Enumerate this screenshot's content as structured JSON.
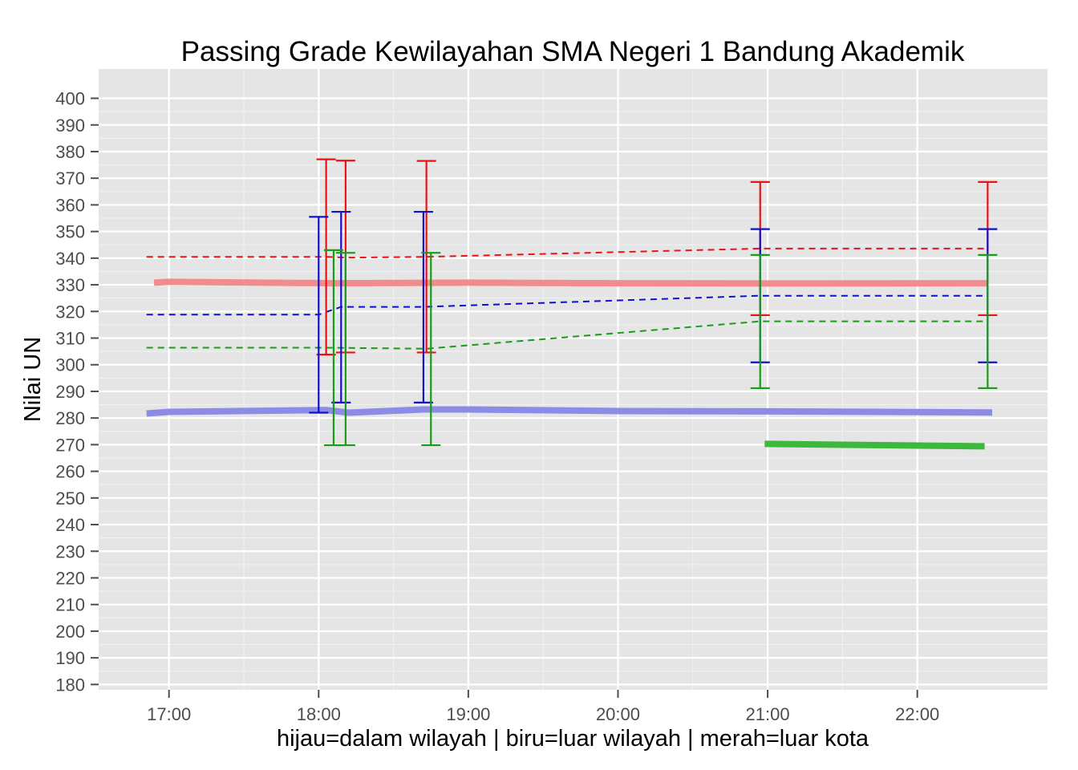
{
  "chart_data": {
    "type": "line",
    "title": "Passing Grade Kewilayahan SMA Negeri 1 Bandung Akademik",
    "xlabel": "hijau=dalam wilayah | biru=luar wilayah | merah=luar kota",
    "ylabel": "Nilai UN",
    "x_axis": {
      "kind": "time",
      "unit": "hours",
      "range": [
        16.53,
        22.87
      ],
      "ticks": [
        {
          "value": 17,
          "label": "17:00"
        },
        {
          "value": 18,
          "label": "18:00"
        },
        {
          "value": 19,
          "label": "19:00"
        },
        {
          "value": 20,
          "label": "20:00"
        },
        {
          "value": 21,
          "label": "21:00"
        },
        {
          "value": 22,
          "label": "22:00"
        }
      ]
    },
    "y_axis": {
      "range": [
        178,
        411
      ],
      "ticks": [
        180,
        190,
        200,
        210,
        220,
        230,
        240,
        250,
        260,
        270,
        280,
        290,
        300,
        310,
        320,
        330,
        340,
        350,
        360,
        370,
        380,
        390,
        400
      ]
    },
    "grid": true,
    "legend": "none",
    "colors": {
      "hijau": "#1a9c1a",
      "biru": "#1111cc",
      "merah": "#ee1111",
      "hijau_thick": "#3cb83c",
      "biru_thick": "#8c8ce6",
      "merah_thick": "#f28c8c",
      "panel": "#e5e5e5",
      "grid_major": "#ffffff",
      "grid_minor": "#f2f2f2"
    },
    "series": [
      {
        "color_key": "merah",
        "style": "dashed",
        "x": [
          16.85,
          18.05,
          18.18,
          18.72,
          20.95,
          22.47
        ],
        "y": [
          340.5,
          340.5,
          340.2,
          340.5,
          343.6,
          343.6
        ]
      },
      {
        "color_key": "biru",
        "style": "dashed",
        "x": [
          16.85,
          18.0,
          18.15,
          18.7,
          20.95,
          22.47
        ],
        "y": [
          318.8,
          318.8,
          321.7,
          321.7,
          325.9,
          325.9
        ]
      },
      {
        "color_key": "hijau",
        "style": "dashed",
        "x": [
          16.85,
          18.05,
          18.72,
          20.95,
          22.47
        ],
        "y": [
          306.4,
          306.4,
          306.0,
          316.3,
          316.3
        ]
      },
      {
        "color_key": "merah_thick",
        "style": "thick",
        "x": [
          16.9,
          17.0,
          18.1,
          19.0,
          20.0,
          21.0,
          22.47
        ],
        "y": [
          330.8,
          331.1,
          330.6,
          330.8,
          330.6,
          330.5,
          330.6
        ]
      },
      {
        "color_key": "biru_thick",
        "style": "thick",
        "x": [
          16.85,
          17.0,
          18.05,
          18.2,
          18.7,
          19.0,
          20.0,
          21.0,
          22.5
        ],
        "y": [
          281.7,
          282.3,
          283.0,
          282.0,
          283.2,
          283.2,
          282.6,
          282.5,
          282.1
        ]
      },
      {
        "color_key": "hijau_thick",
        "style": "thick",
        "x": [
          20.98,
          22.45
        ],
        "y": [
          270.3,
          269.4
        ]
      }
    ],
    "error_bars": [
      {
        "color_key": "merah",
        "x": 18.05,
        "low": 303.8,
        "high": 377.1
      },
      {
        "color_key": "merah",
        "x": 18.18,
        "low": 304.6,
        "high": 376.6
      },
      {
        "color_key": "merah",
        "x": 18.72,
        "low": 304.6,
        "high": 376.5
      },
      {
        "color_key": "merah",
        "x": 20.95,
        "low": 318.6,
        "high": 368.6
      },
      {
        "color_key": "merah",
        "x": 22.47,
        "low": 318.6,
        "high": 368.6
      },
      {
        "color_key": "biru",
        "x": 18.0,
        "low": 282.0,
        "high": 355.5
      },
      {
        "color_key": "biru",
        "x": 18.15,
        "low": 285.8,
        "high": 357.4
      },
      {
        "color_key": "biru",
        "x": 18.7,
        "low": 285.8,
        "high": 357.4
      },
      {
        "color_key": "biru",
        "x": 20.95,
        "low": 300.9,
        "high": 350.9
      },
      {
        "color_key": "biru",
        "x": 22.47,
        "low": 300.9,
        "high": 350.9
      },
      {
        "color_key": "hijau",
        "x": 18.1,
        "low": 269.8,
        "high": 343.0
      },
      {
        "color_key": "hijau",
        "x": 18.18,
        "low": 269.8,
        "high": 342.0
      },
      {
        "color_key": "hijau",
        "x": 18.75,
        "low": 269.8,
        "high": 342.0
      },
      {
        "color_key": "hijau",
        "x": 20.95,
        "low": 291.2,
        "high": 341.2
      },
      {
        "color_key": "hijau",
        "x": 22.47,
        "low": 291.2,
        "high": 341.2
      }
    ]
  }
}
